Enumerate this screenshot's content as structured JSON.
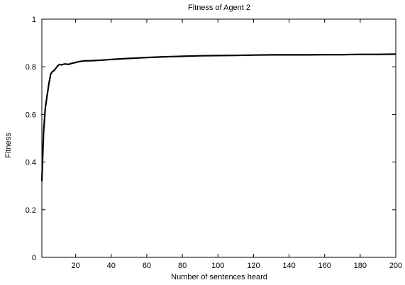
{
  "chart_data": {
    "type": "line",
    "title": "Fitness of Agent 2",
    "xlabel": "Number of sentences heard",
    "ylabel": "Fitness",
    "xlim": [
      1,
      200
    ],
    "ylim": [
      0,
      1
    ],
    "x_ticks": [
      20,
      40,
      60,
      80,
      100,
      120,
      140,
      160,
      180,
      200
    ],
    "y_ticks": [
      0,
      0.2,
      0.4,
      0.6,
      0.8,
      1
    ],
    "y_tick_labels": [
      "0",
      "0.2",
      "0.4",
      "0.6",
      "0.8",
      "1"
    ],
    "grid": false,
    "line_color": "#000000",
    "series": [
      {
        "x": [
          1,
          2,
          3,
          4,
          5,
          6,
          7,
          8,
          9,
          10,
          11,
          12,
          14,
          16,
          18,
          20,
          22,
          25,
          30,
          35,
          40,
          45,
          50,
          55,
          60,
          70,
          80,
          90,
          100,
          110,
          120,
          130,
          140,
          150,
          160,
          170,
          180,
          190,
          200
        ],
        "values": [
          0.32,
          0.53,
          0.63,
          0.68,
          0.73,
          0.77,
          0.78,
          0.785,
          0.795,
          0.805,
          0.81,
          0.808,
          0.812,
          0.81,
          0.815,
          0.818,
          0.822,
          0.825,
          0.826,
          0.828,
          0.831,
          0.833,
          0.835,
          0.837,
          0.839,
          0.842,
          0.844,
          0.846,
          0.847,
          0.848,
          0.849,
          0.85,
          0.85,
          0.85,
          0.851,
          0.851,
          0.852,
          0.852,
          0.853
        ]
      }
    ]
  }
}
